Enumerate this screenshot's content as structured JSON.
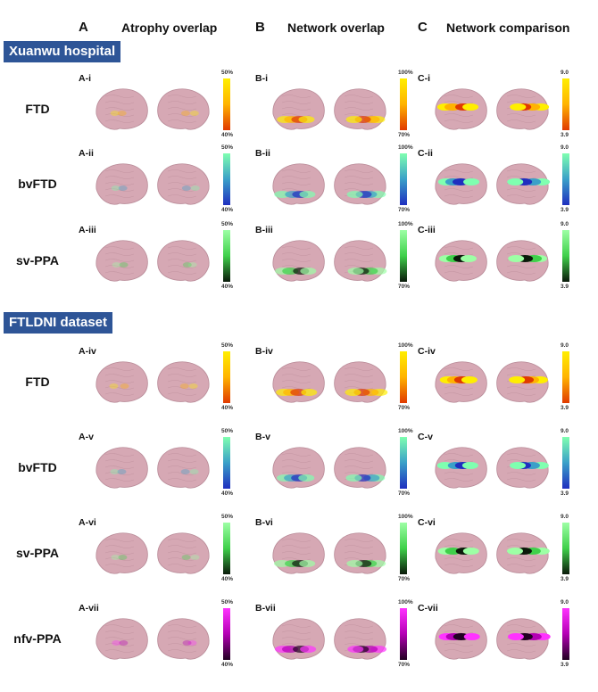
{
  "columns": [
    {
      "letter": "A",
      "title": "Atrophy overlap"
    },
    {
      "letter": "B",
      "title": "Network overlap"
    },
    {
      "letter": "C",
      "title": "Network comparison"
    }
  ],
  "colors": {
    "brain": "#d6a8b4",
    "brain_edge": "#b98b98",
    "section_bg": "#2e5597",
    "yellow_red": [
      "#ffee00",
      "#ffb300",
      "#e03a00"
    ],
    "green_blue": [
      "#7fffb0",
      "#3aa0c8",
      "#1f2fbf"
    ],
    "green_black": [
      "#9dffa5",
      "#3fd04a",
      "#0a1a0a"
    ],
    "magenta_black": [
      "#ff33ff",
      "#b400b4",
      "#220022"
    ]
  },
  "sections": [
    {
      "title": "Xuanwu hospital",
      "rows": [
        {
          "label": "FTD",
          "palette": "yellow_red",
          "panels": [
            {
              "id": "A-i",
              "top": "50%",
              "bottom": "40%"
            },
            {
              "id": "B-i",
              "top": "100%",
              "bottom": "70%"
            },
            {
              "id": "C-i",
              "top": "9.0",
              "bottom": "3.9"
            }
          ]
        },
        {
          "label": "bvFTD",
          "palette": "green_blue",
          "panels": [
            {
              "id": "A-ii",
              "top": "50%",
              "bottom": "40%"
            },
            {
              "id": "B-ii",
              "top": "100%",
              "bottom": "70%"
            },
            {
              "id": "C-ii",
              "top": "9.0",
              "bottom": "3.9"
            }
          ]
        },
        {
          "label": "sv-PPA",
          "palette": "green_black",
          "panels": [
            {
              "id": "A-iii",
              "top": "50%",
              "bottom": "40%"
            },
            {
              "id": "B-iii",
              "top": "100%",
              "bottom": "70%"
            },
            {
              "id": "C-iii",
              "top": "9.0",
              "bottom": "3.9"
            }
          ]
        }
      ]
    },
    {
      "title": "FTLDNI dataset",
      "rows": [
        {
          "label": "FTD",
          "palette": "yellow_red",
          "panels": [
            {
              "id": "A-iv",
              "top": "50%",
              "bottom": "40%"
            },
            {
              "id": "B-iv",
              "top": "100%",
              "bottom": "70%"
            },
            {
              "id": "C-iv",
              "top": "9.0",
              "bottom": "3.9"
            }
          ]
        },
        {
          "label": "bvFTD",
          "palette": "green_blue",
          "panels": [
            {
              "id": "A-v",
              "top": "50%",
              "bottom": "40%"
            },
            {
              "id": "B-v",
              "top": "100%",
              "bottom": "70%"
            },
            {
              "id": "C-v",
              "top": "9.0",
              "bottom": "3.9"
            }
          ]
        },
        {
          "label": "sv-PPA",
          "palette": "green_black",
          "panels": [
            {
              "id": "A-vi",
              "top": "50%",
              "bottom": "40%"
            },
            {
              "id": "B-vi",
              "top": "100%",
              "bottom": "70%"
            },
            {
              "id": "C-vi",
              "top": "9.0",
              "bottom": "3.9"
            }
          ]
        },
        {
          "label": "nfv-PPA",
          "palette": "magenta_black",
          "panels": [
            {
              "id": "A-vii",
              "top": "50%",
              "bottom": "40%"
            },
            {
              "id": "B-vii",
              "top": "100%",
              "bottom": "70%"
            },
            {
              "id": "C-vii",
              "top": "9.0",
              "bottom": "3.9"
            }
          ]
        }
      ]
    }
  ]
}
